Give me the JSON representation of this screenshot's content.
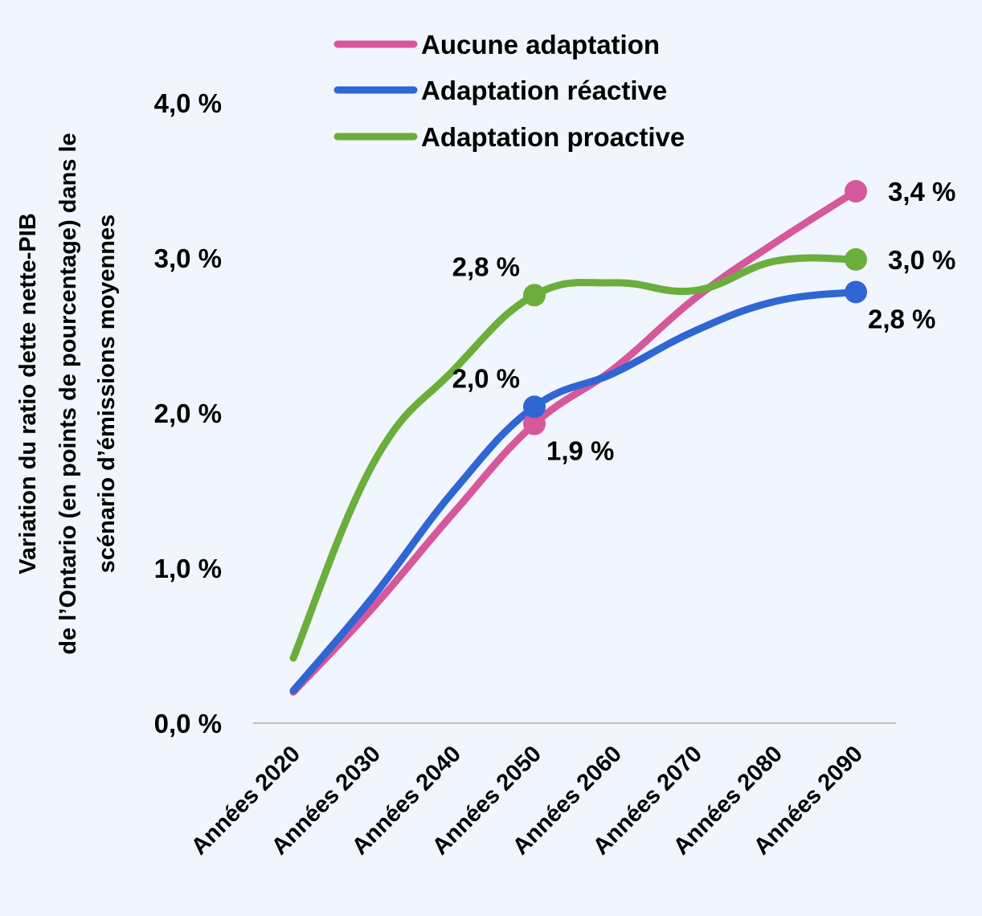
{
  "chart_data": {
    "type": "line",
    "title": "",
    "xlabel": "",
    "ylabel_lines": [
      "Variation du ratio dette nette-PIB",
      "de l’Ontario (en points de pourcentage) dans le",
      "scénario d’émissions moyennes"
    ],
    "categories": [
      "Années 2020",
      "Années 2030",
      "Années 2040",
      "Années 2050",
      "Années 2060",
      "Années 2070",
      "Années 2080",
      "Années 2090"
    ],
    "ylim": [
      0,
      4
    ],
    "yticks": [
      0,
      1,
      2,
      3,
      4
    ],
    "ytick_labels": [
      "0,0 %",
      "1,0 %",
      "2,0 %",
      "3,0 %",
      "4,0 %"
    ],
    "grid": false,
    "legend_position": "top",
    "series": [
      {
        "name": "Aucune adaptation",
        "color": "#d6589b",
        "values": [
          0.2,
          0.75,
          1.36,
          1.93,
          2.29,
          2.74,
          3.1,
          3.43
        ],
        "markers": [
          {
            "index": 3,
            "label": "1,9 %",
            "label_pos": "below-right"
          },
          {
            "index": 7,
            "label": "3,4 %",
            "label_pos": "right"
          }
        ]
      },
      {
        "name": "Adaptation réactive",
        "color": "#2f66d3",
        "values": [
          0.21,
          0.82,
          1.5,
          2.04,
          2.26,
          2.53,
          2.72,
          2.78
        ],
        "markers": [
          {
            "index": 3,
            "label": "2,0 %",
            "label_pos": "above-left"
          },
          {
            "index": 7,
            "label": "2,8 %",
            "label_pos": "below-right"
          }
        ]
      },
      {
        "name": "Adaptation proactive",
        "color": "#6aae3b",
        "values": [
          0.42,
          1.68,
          2.28,
          2.76,
          2.84,
          2.79,
          2.98,
          2.99
        ],
        "markers": [
          {
            "index": 3,
            "label": "2,8 %",
            "label_pos": "above-left"
          },
          {
            "index": 7,
            "label": "3,0 %",
            "label_pos": "right"
          }
        ]
      }
    ]
  }
}
